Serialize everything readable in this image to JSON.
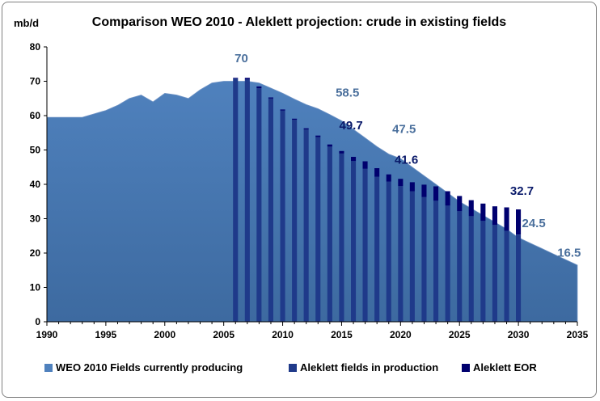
{
  "chart_data": {
    "type": "area",
    "title": "Comparison WEO 2010 - Aleklett projection: crude in existing fields",
    "ylabel": "mb/d",
    "xlabel": "",
    "xlim": [
      1990,
      2035
    ],
    "ylim": [
      0,
      80
    ],
    "yticks": [
      0,
      10,
      20,
      30,
      40,
      50,
      60,
      70,
      80
    ],
    "xticks": [
      1990,
      1995,
      2000,
      2005,
      2010,
      2015,
      2020,
      2025,
      2030,
      2035
    ],
    "grid": false,
    "legend_position": "bottom",
    "colors": {
      "weo_area": "#4f81bd",
      "weo_area_dark": "#3d6aa0",
      "aleklett_fields": "#1f3a8a",
      "aleklett_eor": "#00006e",
      "label_weo": "#4a6f9c",
      "label_aleklett": "#0a1a6a"
    },
    "series": [
      {
        "name": "WEO 2010 Fields currently producing",
        "kind": "area",
        "x": [
          1990,
          1991,
          1992,
          1993,
          1994,
          1995,
          1996,
          1997,
          1998,
          1999,
          2000,
          2001,
          2002,
          2003,
          2004,
          2005,
          2006,
          2007,
          2008,
          2009,
          2010,
          2011,
          2012,
          2013,
          2014,
          2015,
          2016,
          2017,
          2018,
          2019,
          2020,
          2021,
          2022,
          2023,
          2024,
          2025,
          2026,
          2027,
          2028,
          2029,
          2030,
          2031,
          2032,
          2033,
          2034,
          2035
        ],
        "values": [
          59.5,
          59.5,
          59.5,
          59.5,
          60.5,
          61.5,
          63.0,
          65.0,
          66.0,
          64.0,
          66.5,
          66.0,
          65.0,
          67.5,
          69.5,
          70.0,
          70.0,
          70.0,
          69.5,
          68.0,
          66.5,
          64.8,
          63.2,
          62.0,
          60.3,
          58.5,
          56.0,
          53.5,
          51.0,
          48.8,
          47.5,
          45.0,
          42.5,
          40.0,
          37.5,
          35.0,
          33.0,
          31.0,
          29.0,
          27.0,
          24.5,
          22.9,
          21.3,
          19.7,
          18.1,
          16.5
        ]
      },
      {
        "name": "Aleklett fields in production",
        "kind": "bar",
        "x": [
          2006,
          2007,
          2008,
          2009,
          2010,
          2011,
          2012,
          2013,
          2014,
          2015,
          2016,
          2017,
          2018,
          2019,
          2020,
          2021,
          2022,
          2023,
          2024,
          2025,
          2026,
          2027,
          2028,
          2029,
          2030
        ],
        "values": [
          70.8,
          70.5,
          68.0,
          65.0,
          61.5,
          58.8,
          56.0,
          53.8,
          51.0,
          49.0,
          46.8,
          44.5,
          42.2,
          40.8,
          39.5,
          38.0,
          36.3,
          35.2,
          33.8,
          32.2,
          30.8,
          29.4,
          28.2,
          26.5,
          25.4
        ]
      },
      {
        "name": "Aleklett EOR",
        "kind": "bar",
        "x": [
          2006,
          2007,
          2008,
          2009,
          2010,
          2011,
          2012,
          2013,
          2014,
          2015,
          2016,
          2017,
          2018,
          2019,
          2020,
          2021,
          2022,
          2023,
          2024,
          2025,
          2026,
          2027,
          2028,
          2029,
          2030
        ],
        "values": [
          0.2,
          0.5,
          0.5,
          0.3,
          0.3,
          0.3,
          0.3,
          0.4,
          0.6,
          0.7,
          1.2,
          2.2,
          2.5,
          2.1,
          2.1,
          2.6,
          3.6,
          4.2,
          4.2,
          4.4,
          4.6,
          5.0,
          5.4,
          6.8,
          7.3
        ]
      }
    ],
    "annotations": [
      {
        "text": "70",
        "x": 2006.5,
        "y": 75.5,
        "color_key": "label_weo"
      },
      {
        "text": "58.5",
        "x": 2015.5,
        "y": 65.5,
        "color_key": "label_weo"
      },
      {
        "text": "49.7",
        "x": 2015.8,
        "y": 56.0,
        "color_key": "label_aleklett"
      },
      {
        "text": "47.5",
        "x": 2020.3,
        "y": 55.0,
        "color_key": "label_weo"
      },
      {
        "text": "41.6",
        "x": 2020.5,
        "y": 46.0,
        "color_key": "label_aleklett"
      },
      {
        "text": "32.7",
        "x": 2030.3,
        "y": 37.0,
        "color_key": "label_aleklett"
      },
      {
        "text": "24.5",
        "x": 2031.3,
        "y": 27.5,
        "color_key": "label_weo"
      },
      {
        "text": "16.5",
        "x": 2034.3,
        "y": 19.0,
        "color_key": "label_weo"
      }
    ]
  }
}
